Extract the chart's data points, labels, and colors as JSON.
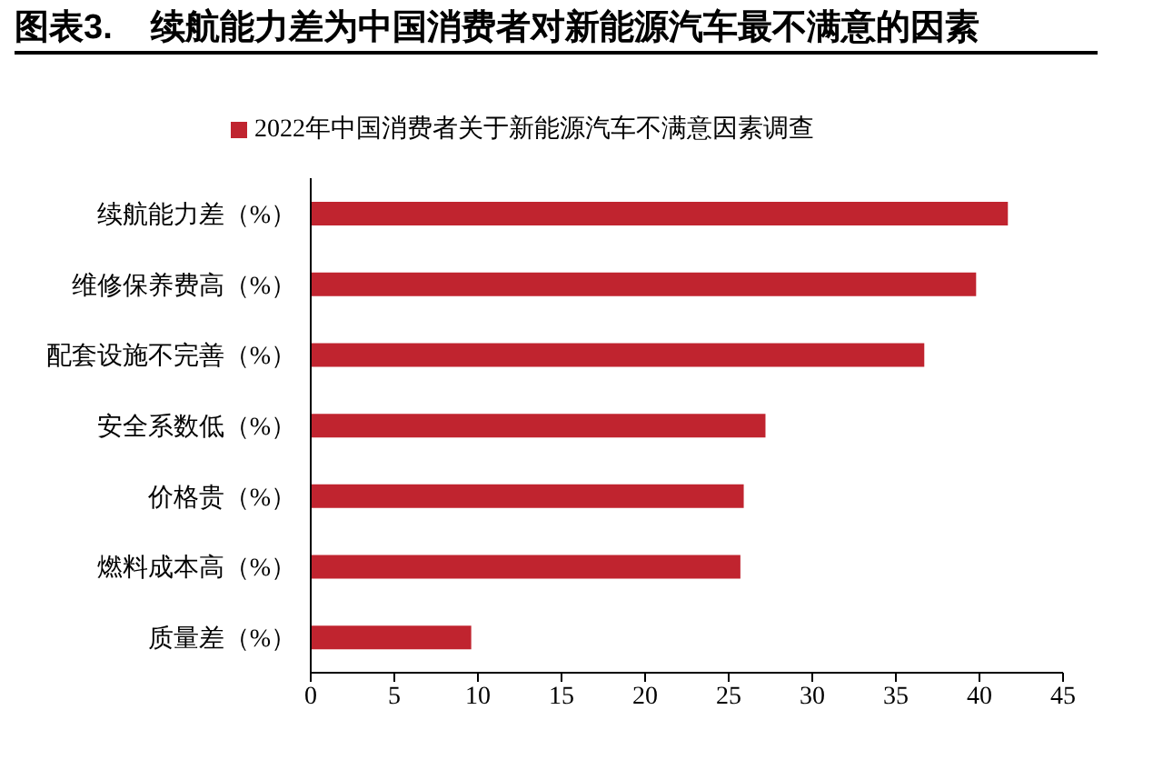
{
  "chart_data": {
    "type": "bar",
    "orientation": "horizontal",
    "title": "图表3.    续航能力差为中国消费者对新能源汽车最不满意的因素",
    "categories": [
      "续航能力差（%）",
      "维修保养费高（%）",
      "配套设施不完善（%）",
      "安全系数低（%）",
      "价格贵（%）",
      "燃料成本高（%）",
      "质量差（%）"
    ],
    "series": [
      {
        "name": "2022年中国消费者关于新能源汽车不满意因素调查",
        "color": "#c0242f",
        "values": [
          41.7,
          39.8,
          36.7,
          27.2,
          25.9,
          25.7,
          9.6
        ]
      }
    ],
    "xlim": [
      0,
      45
    ],
    "xticks": [
      0,
      5,
      10,
      15,
      20,
      25,
      30,
      35,
      40,
      45
    ],
    "legend": "top"
  }
}
